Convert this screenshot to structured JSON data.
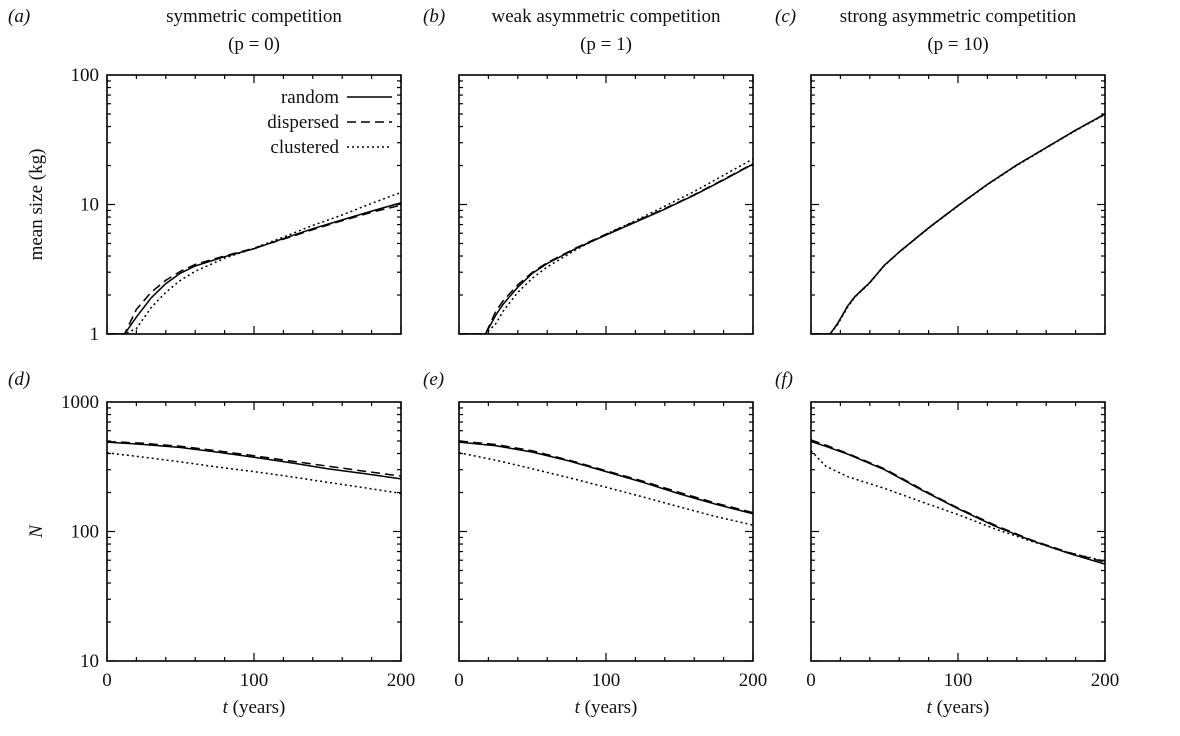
{
  "figure": {
    "column_titles": [
      {
        "line1": "symmetric competition",
        "line2": "(p = 0)"
      },
      {
        "line1": "weak asymmetric competition",
        "line2": "(p = 1)"
      },
      {
        "line1": "strong asymmetric competition",
        "line2": "(p = 10)"
      }
    ],
    "panel_letters": [
      "(a)",
      "(b)",
      "(c)",
      "(d)",
      "(e)",
      "(f)"
    ],
    "x_axis_label_var": "t",
    "x_axis_label_unit": "(years)",
    "row_ylabels": [
      "mean size (kg)",
      "N"
    ],
    "legend": [
      {
        "label": "random",
        "style": "solid"
      },
      {
        "label": "dispersed",
        "style": "dashed"
      },
      {
        "label": "clustered",
        "style": "dotted"
      }
    ]
  },
  "chart_data": [
    {
      "type": "line",
      "panel": "(a)",
      "title": "symmetric competition (p = 0)",
      "ylabel": "mean size (kg)",
      "yscale": "log",
      "xlim": [
        0,
        200
      ],
      "ylim": [
        1,
        100
      ],
      "x_ticks": [
        0,
        100,
        200
      ],
      "y_ticks": [
        1,
        10,
        100
      ],
      "x": [
        0,
        12,
        20,
        30,
        40,
        50,
        60,
        80,
        100,
        120,
        140,
        160,
        180,
        200
      ],
      "series": [
        {
          "name": "random",
          "values": [
            1,
            1,
            1.35,
            1.9,
            2.45,
            2.95,
            3.35,
            3.95,
            4.55,
            5.45,
            6.5,
            7.6,
            8.9,
            10.3
          ]
        },
        {
          "name": "dispersed",
          "values": [
            1,
            1,
            1.55,
            2.1,
            2.6,
            3.05,
            3.45,
            4.0,
            4.6,
            5.4,
            6.4,
            7.5,
            8.7,
            9.9
          ]
        },
        {
          "name": "clustered",
          "values": [
            1,
            1,
            1.1,
            1.6,
            2.1,
            2.6,
            3.05,
            3.85,
            4.6,
            5.6,
            6.9,
            8.3,
            10.2,
            12.4
          ]
        }
      ]
    },
    {
      "type": "line",
      "panel": "(b)",
      "title": "weak asymmetric competition (p = 1)",
      "yscale": "log",
      "xlim": [
        0,
        200
      ],
      "ylim": [
        1,
        100
      ],
      "x_ticks": [
        0,
        100,
        200
      ],
      "y_ticks": [
        1,
        10,
        100
      ],
      "x": [
        0,
        18,
        25,
        30,
        40,
        50,
        60,
        80,
        100,
        120,
        140,
        160,
        180,
        200
      ],
      "series": [
        {
          "name": "random",
          "values": [
            1,
            1,
            1.4,
            1.7,
            2.3,
            2.95,
            3.5,
            4.6,
            5.8,
            7.3,
            9.2,
            11.8,
            15.5,
            20.5
          ]
        },
        {
          "name": "dispersed",
          "values": [
            1,
            1,
            1.5,
            1.8,
            2.4,
            3.0,
            3.55,
            4.65,
            5.9,
            7.4,
            9.3,
            11.9,
            15.6,
            20.7
          ]
        },
        {
          "name": "clustered",
          "values": [
            1,
            1,
            1.2,
            1.5,
            2.1,
            2.7,
            3.3,
            4.5,
            5.9,
            7.5,
            9.7,
            12.6,
            16.8,
            22.5
          ]
        }
      ]
    },
    {
      "type": "line",
      "panel": "(c)",
      "title": "strong asymmetric competition (p = 10)",
      "yscale": "log",
      "xlim": [
        0,
        200
      ],
      "ylim": [
        1,
        100
      ],
      "x_ticks": [
        0,
        100,
        200
      ],
      "y_ticks": [
        1,
        10,
        100
      ],
      "x": [
        0,
        13,
        18,
        25,
        30,
        40,
        50,
        60,
        80,
        100,
        120,
        140,
        160,
        180,
        200
      ],
      "series": [
        {
          "name": "random",
          "values": [
            1,
            1,
            1.2,
            1.65,
            1.95,
            2.5,
            3.4,
            4.3,
            6.6,
            9.8,
            14.3,
            20.2,
            27.5,
            37.5,
            50
          ]
        },
        {
          "name": "dispersed",
          "values": [
            1,
            1,
            1.2,
            1.65,
            1.95,
            2.5,
            3.4,
            4.3,
            6.6,
            9.8,
            14.3,
            20.2,
            27.5,
            37.5,
            50
          ]
        },
        {
          "name": "clustered",
          "values": [
            1,
            1,
            1.18,
            1.62,
            1.93,
            2.48,
            3.38,
            4.28,
            6.55,
            9.75,
            14.2,
            20.0,
            27.3,
            37.2,
            49.5
          ]
        }
      ]
    },
    {
      "type": "line",
      "panel": "(d)",
      "ylabel": "N",
      "xlabel": "t (years)",
      "yscale": "log",
      "xlim": [
        0,
        200
      ],
      "ylim": [
        10,
        1000
      ],
      "x_ticks": [
        0,
        100,
        200
      ],
      "y_ticks": [
        10,
        100,
        1000
      ],
      "x": [
        0,
        25,
        50,
        75,
        100,
        125,
        150,
        175,
        200
      ],
      "series": [
        {
          "name": "random",
          "values": [
            490,
            470,
            445,
            410,
            375,
            340,
            305,
            280,
            255
          ]
        },
        {
          "name": "dispersed",
          "values": [
            495,
            480,
            455,
            420,
            385,
            350,
            320,
            292,
            268
          ]
        },
        {
          "name": "clustered",
          "values": [
            405,
            375,
            345,
            315,
            290,
            265,
            240,
            218,
            197
          ]
        }
      ]
    },
    {
      "type": "line",
      "panel": "(e)",
      "xlabel": "t (years)",
      "yscale": "log",
      "xlim": [
        0,
        200
      ],
      "ylim": [
        10,
        1000
      ],
      "x_ticks": [
        0,
        100,
        200
      ],
      "y_ticks": [
        10,
        100,
        1000
      ],
      "x": [
        0,
        25,
        50,
        75,
        100,
        125,
        150,
        175,
        200
      ],
      "series": [
        {
          "name": "random",
          "values": [
            490,
            460,
            410,
            350,
            290,
            240,
            195,
            162,
            137
          ]
        },
        {
          "name": "dispersed",
          "values": [
            500,
            470,
            420,
            355,
            295,
            245,
            200,
            165,
            140
          ]
        },
        {
          "name": "clustered",
          "values": [
            405,
            355,
            305,
            260,
            220,
            185,
            155,
            130,
            112
          ]
        }
      ]
    },
    {
      "type": "line",
      "panel": "(f)",
      "xlabel": "t (years)",
      "yscale": "log",
      "xlim": [
        0,
        200
      ],
      "ylim": [
        10,
        1000
      ],
      "x_ticks": [
        0,
        100,
        200
      ],
      "y_ticks": [
        10,
        100,
        1000
      ],
      "x": [
        0,
        10,
        25,
        50,
        75,
        100,
        125,
        150,
        175,
        200
      ],
      "series": [
        {
          "name": "random",
          "values": [
            495,
            455,
            395,
            300,
            210,
            150,
            110,
            85,
            68,
            56
          ]
        },
        {
          "name": "dispersed",
          "values": [
            510,
            465,
            400,
            305,
            213,
            152,
            112,
            86,
            69,
            58
          ]
        },
        {
          "name": "clustered",
          "values": [
            420,
            320,
            265,
            215,
            170,
            135,
            105,
            84,
            69,
            59
          ]
        }
      ]
    }
  ]
}
